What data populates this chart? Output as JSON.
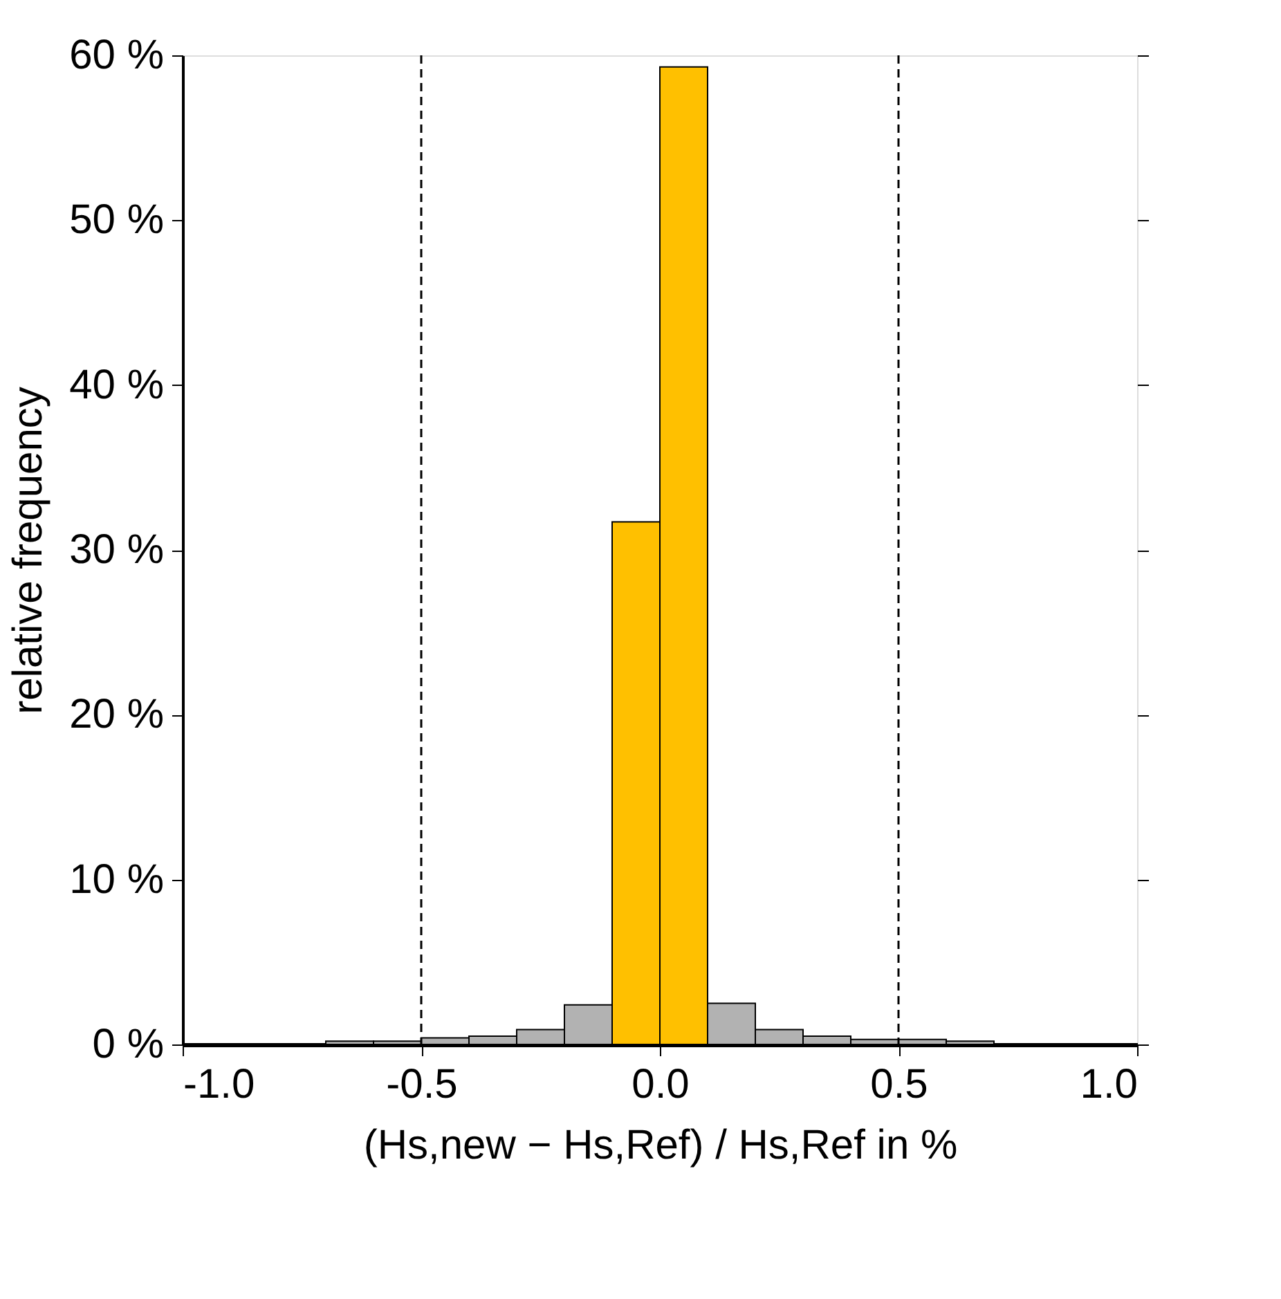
{
  "chart_data": {
    "type": "histogram",
    "xlabel": "(Hs,new − Hs,Ref) / Hs,Ref in %",
    "ylabel": "relative frequency",
    "bins": [
      -1.0,
      -0.9,
      -0.8,
      -0.7,
      -0.6,
      -0.5,
      -0.4,
      -0.3,
      -0.2,
      -0.1,
      0.0,
      0.1,
      0.2,
      0.3,
      0.4,
      0.5,
      0.6,
      0.7,
      0.8,
      0.9,
      1.0
    ],
    "values": [
      0,
      0,
      0,
      0.2,
      0.2,
      0.4,
      0.5,
      0.9,
      2.4,
      31.7,
      59.3,
      2.5,
      0.9,
      0.5,
      0.3,
      0.3,
      0.2,
      0,
      0,
      0
    ],
    "colors": [
      "#b2b2b2",
      "#b2b2b2",
      "#b2b2b2",
      "#b2b2b2",
      "#b2b2b2",
      "#b2b2b2",
      "#b2b2b2",
      "#b2b2b2",
      "#b2b2b2",
      "#ffc000",
      "#ffc000",
      "#b2b2b2",
      "#b2b2b2",
      "#b2b2b2",
      "#b2b2b2",
      "#b2b2b2",
      "#b2b2b2",
      "#b2b2b2",
      "#b2b2b2",
      "#b2b2b2"
    ],
    "xlim": [
      -1.0,
      1.0
    ],
    "xticks": [
      {
        "value": -1.0,
        "label": "-1.0"
      },
      {
        "value": -0.5,
        "label": "-0.5"
      },
      {
        "value": 0,
        "label": "0.0"
      },
      {
        "value": 0.5,
        "label": "0.5"
      },
      {
        "value": 1.0,
        "label": "1.0"
      }
    ],
    "ylim": [
      0,
      60
    ],
    "yticks": [
      {
        "value": 0,
        "label": "0 %"
      },
      {
        "value": 10,
        "label": "10 %"
      },
      {
        "value": 20,
        "label": "20 %"
      },
      {
        "value": 30,
        "label": "30 %"
      },
      {
        "value": 40,
        "label": "40 %"
      },
      {
        "value": 50,
        "label": "50 %"
      },
      {
        "value": 60,
        "label": "60 %"
      }
    ],
    "ref_lines": [
      {
        "axis": "x",
        "value": -0.5,
        "color": "#000000",
        "line_style": "dashed"
      },
      {
        "axis": "x",
        "value": 0.5,
        "color": "#000000",
        "line_style": "dashed"
      }
    ],
    "grid": false
  }
}
